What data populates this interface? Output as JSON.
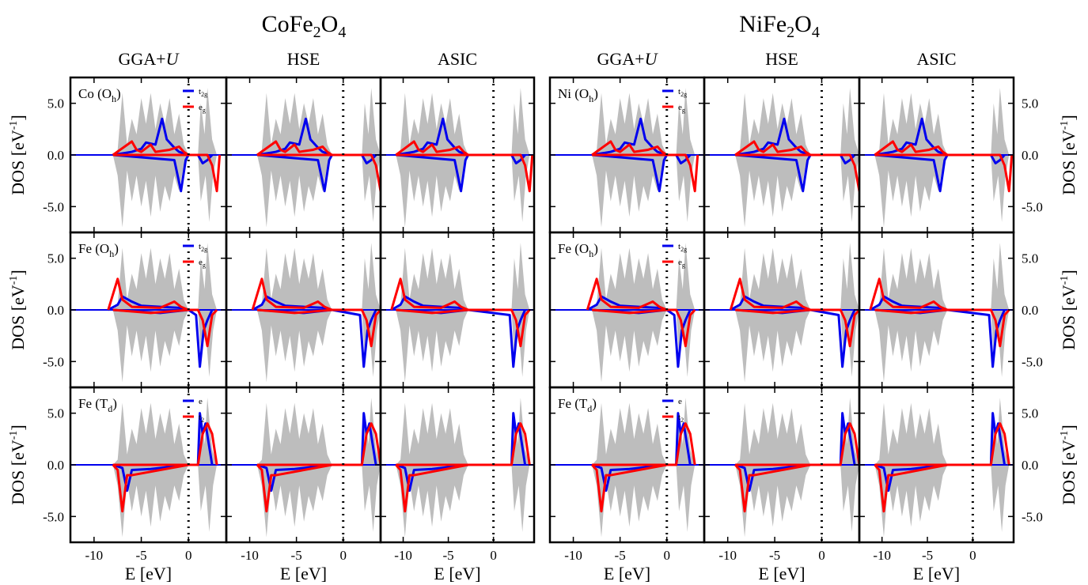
{
  "figure": {
    "group_titles": [
      {
        "base": "CoFe",
        "sub1": "2",
        "mid": "O",
        "sub2": "4"
      },
      {
        "base": "NiFe",
        "sub1": "2",
        "mid": "O",
        "sub2": "4"
      }
    ],
    "method_titles": [
      {
        "main": "GGA+",
        "italic": "U"
      },
      {
        "main": "HSE",
        "italic": ""
      },
      {
        "main": "ASIC",
        "italic": ""
      },
      {
        "main": "GGA+",
        "italic": "U"
      },
      {
        "main": "HSE",
        "italic": ""
      },
      {
        "main": "ASIC",
        "italic": ""
      }
    ],
    "ylabel": {
      "main": "DOS [eV",
      "sup": "-1",
      "close": "]"
    },
    "xlabel": "E [eV]",
    "colors": {
      "total": "#bdbdbd",
      "blue": "#0000ee",
      "red": "#ff0000",
      "frame": "#000000"
    }
  },
  "chart_data": {
    "type": "area",
    "ylim": [
      -7.5,
      7.5
    ],
    "yticks": [
      -5.0,
      0.0,
      5.0
    ],
    "ytick_labels": [
      "-5.0",
      "0.0",
      "5.0"
    ],
    "xticks": [
      -10,
      -5,
      0,
      5
    ],
    "xlims": {
      "GGA+U": [
        -12.5,
        4
      ],
      "HSE": [
        -12.5,
        4
      ],
      "ASIC": [
        -12.5,
        4.5
      ]
    },
    "fermi_level": 0,
    "row_labels": [
      {
        "el": "Co",
        "site": "O",
        "site_sub": "h",
        "legend": [
          {
            "t": "t",
            "s": "2g"
          },
          {
            "t": "e",
            "s": "g"
          }
        ]
      },
      {
        "el": "Fe",
        "site": "O",
        "site_sub": "h",
        "legend": [
          {
            "t": "t",
            "s": "2g"
          },
          {
            "t": "e",
            "s": "g"
          }
        ]
      },
      {
        "el": "Fe",
        "site": "T",
        "site_sub": "d",
        "legend": [
          {
            "t": "e",
            "s": ""
          },
          {
            "t": "t",
            "s": "2"
          }
        ]
      },
      {
        "el": "Ni",
        "site": "O",
        "site_sub": "h",
        "legend": [
          {
            "t": "t",
            "s": "2g"
          },
          {
            "t": "e",
            "s": "g"
          }
        ]
      },
      {
        "el": "Fe",
        "site": "O",
        "site_sub": "h",
        "legend": [
          {
            "t": "t",
            "s": "2g"
          },
          {
            "t": "e",
            "s": "g"
          }
        ]
      },
      {
        "el": "Fe",
        "site": "T",
        "site_sub": "d",
        "legend": [
          {
            "t": "e",
            "s": ""
          },
          {
            "t": "t",
            "s": "2"
          }
        ]
      }
    ],
    "series": {
      "total": {
        "up": [
          [
            -8,
            0
          ],
          [
            -7.5,
            0.5
          ],
          [
            -7,
            6
          ],
          [
            -6.5,
            1
          ],
          [
            -6,
            3.5
          ],
          [
            -5.5,
            2
          ],
          [
            -5,
            5.5
          ],
          [
            -4.5,
            3
          ],
          [
            -4,
            6
          ],
          [
            -3.5,
            2.5
          ],
          [
            -3,
            5
          ],
          [
            -2.5,
            3
          ],
          [
            -2,
            5.5
          ],
          [
            -1.5,
            2
          ],
          [
            -1,
            4
          ],
          [
            -0.5,
            1
          ],
          [
            0,
            0
          ],
          [
            1,
            0
          ],
          [
            1.3,
            5
          ],
          [
            1.7,
            2
          ],
          [
            2,
            6.5
          ],
          [
            2.5,
            1.5
          ],
          [
            3,
            0
          ]
        ],
        "down": [
          [
            -8,
            0
          ],
          [
            -7.5,
            -2
          ],
          [
            -7,
            -7
          ],
          [
            -6.5,
            -1.5
          ],
          [
            -6,
            -4.5
          ],
          [
            -5.5,
            -2
          ],
          [
            -5,
            -5
          ],
          [
            -4.5,
            -2.5
          ],
          [
            -4,
            -6
          ],
          [
            -3.5,
            -2
          ],
          [
            -3,
            -5.5
          ],
          [
            -2.5,
            -3
          ],
          [
            -2,
            -4.5
          ],
          [
            -1.5,
            -2
          ],
          [
            -1,
            -3.5
          ],
          [
            -0.5,
            -1
          ],
          [
            0,
            0
          ],
          [
            1,
            0
          ],
          [
            1.3,
            -4.5
          ],
          [
            1.8,
            -2
          ],
          [
            2.2,
            -6.5
          ],
          [
            2.6,
            -2
          ],
          [
            3,
            0
          ]
        ]
      },
      "row0": {
        "blue_up": [
          [
            -8,
            0
          ],
          [
            -6,
            0.3
          ],
          [
            -5,
            0.6
          ],
          [
            -4.5,
            1.2
          ],
          [
            -3.5,
            1
          ],
          [
            -2.8,
            3.5
          ],
          [
            -2.3,
            1.5
          ],
          [
            -1.5,
            0.7
          ],
          [
            -1,
            0.3
          ],
          [
            0,
            0
          ]
        ],
        "red_up": [
          [
            -8,
            0
          ],
          [
            -6,
            1.3
          ],
          [
            -5.5,
            0.5
          ],
          [
            -5,
            0.3
          ],
          [
            -4,
            1
          ],
          [
            -3.5,
            0.3
          ],
          [
            -2,
            0.5
          ],
          [
            -1,
            0.8
          ],
          [
            -0.5,
            0.3
          ],
          [
            0,
            0
          ]
        ],
        "blue_down": [
          [
            -8,
            0
          ],
          [
            -1.5,
            -0.5
          ],
          [
            -0.8,
            -3.5
          ],
          [
            -0.3,
            -0.5
          ],
          [
            0,
            0
          ],
          [
            1,
            0
          ],
          [
            1.5,
            -0.8
          ],
          [
            2,
            -0.5
          ],
          [
            2.5,
            0
          ]
        ],
        "red_down": [
          [
            -8,
            0
          ],
          [
            2,
            0
          ],
          [
            2.5,
            -1
          ],
          [
            3,
            -3.5
          ],
          [
            3.3,
            0
          ]
        ]
      },
      "row1": {
        "blue_up": [
          [
            -8.5,
            0
          ],
          [
            -7.5,
            0.5
          ],
          [
            -7,
            1.3
          ],
          [
            -6,
            0.8
          ],
          [
            -5,
            0.4
          ],
          [
            -3,
            0.3
          ],
          [
            -1,
            0.2
          ],
          [
            0,
            0
          ]
        ],
        "red_up": [
          [
            -8.5,
            0
          ],
          [
            -7.5,
            3
          ],
          [
            -7,
            1
          ],
          [
            -6,
            0.3
          ],
          [
            -3,
            0.2
          ],
          [
            -1.5,
            0.8
          ],
          [
            -0.8,
            0.3
          ],
          [
            0,
            0
          ]
        ],
        "blue_down": [
          [
            -8,
            0
          ],
          [
            -3,
            -0.3
          ],
          [
            0,
            0
          ],
          [
            0.8,
            -0.5
          ],
          [
            1.2,
            -5.5
          ],
          [
            1.6,
            -2
          ],
          [
            2,
            -1
          ],
          [
            2.5,
            0
          ]
        ],
        "red_down": [
          [
            -8,
            0
          ],
          [
            -4,
            -0.3
          ],
          [
            0,
            0
          ],
          [
            1,
            0
          ],
          [
            1.5,
            -1
          ],
          [
            2,
            -3.5
          ],
          [
            2.5,
            -0.5
          ],
          [
            3,
            0
          ]
        ]
      },
      "row2": {
        "blue_up": [
          [
            -8,
            0
          ],
          [
            0,
            0
          ],
          [
            1,
            0
          ],
          [
            1.2,
            5
          ],
          [
            1.5,
            3
          ],
          [
            1.8,
            4
          ],
          [
            2.5,
            0
          ]
        ],
        "red_up": [
          [
            -8,
            0
          ],
          [
            0,
            0
          ],
          [
            1,
            0
          ],
          [
            1.5,
            3
          ],
          [
            2,
            4
          ],
          [
            2.5,
            3
          ],
          [
            3,
            0
          ]
        ],
        "blue_down": [
          [
            -8,
            0
          ],
          [
            -7,
            -0.3
          ],
          [
            -6.5,
            -2.5
          ],
          [
            -6,
            -0.5
          ],
          [
            -4,
            -0.4
          ],
          [
            -2,
            -0.2
          ],
          [
            0,
            0
          ]
        ],
        "red_down": [
          [
            -8,
            0
          ],
          [
            -7.5,
            -0.5
          ],
          [
            -7,
            -4.5
          ],
          [
            -6.5,
            -1
          ],
          [
            -6,
            -1
          ],
          [
            -3,
            -0.5
          ],
          [
            0,
            0
          ]
        ]
      }
    }
  }
}
